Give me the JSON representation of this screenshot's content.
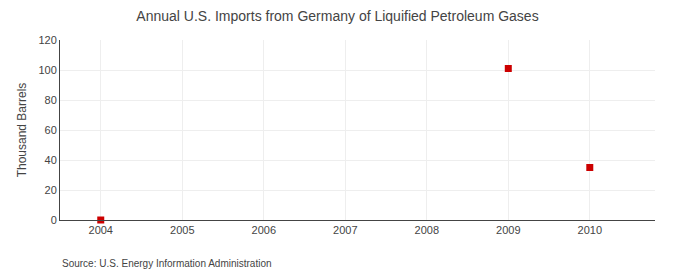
{
  "chart_data": {
    "type": "scatter",
    "title": "Annual U.S. Imports from Germany of Liquified Petroleum Gases",
    "ylabel": "Thousand Barrels",
    "annotations": [
      "Source: U.S. Energy Information Administration"
    ],
    "x": [
      2004,
      2009,
      2010
    ],
    "values": [
      0,
      101,
      35
    ],
    "color": "#cc0000",
    "marker": "square",
    "xlim": [
      2003.5,
      2010.8
    ],
    "xticks": [
      2004,
      2005,
      2006,
      2007,
      2008,
      2009,
      2010
    ],
    "ylim": [
      0,
      120
    ],
    "yticks": [
      0,
      20,
      40,
      60,
      80,
      100,
      120
    ],
    "grid": true
  }
}
